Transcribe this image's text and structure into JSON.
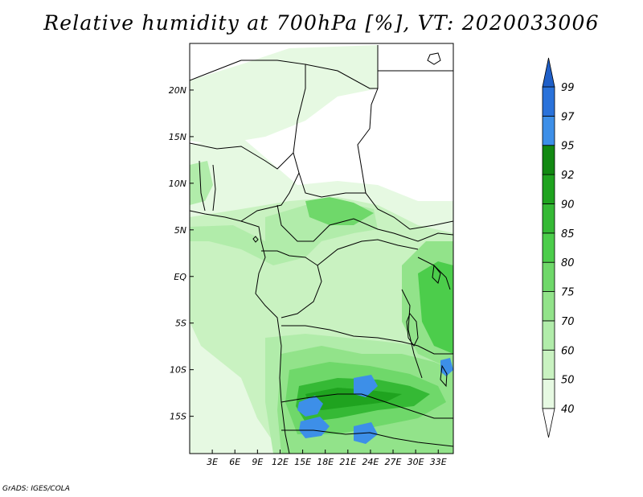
{
  "title": "Relative humidity at 700hPa [%], VT: 2020033006",
  "credit": "GrADS: IGES/COLA",
  "map": {
    "lat_range": [
      -19,
      25
    ],
    "lon_range": [
      0,
      35
    ],
    "lat_ticks": [
      {
        "value": 20,
        "label": "20N"
      },
      {
        "value": 15,
        "label": "15N"
      },
      {
        "value": 10,
        "label": "10N"
      },
      {
        "value": 5,
        "label": "5N"
      },
      {
        "value": 0,
        "label": "EQ"
      },
      {
        "value": -5,
        "label": "5S"
      },
      {
        "value": -10,
        "label": "10S"
      },
      {
        "value": -15,
        "label": "15S"
      }
    ],
    "lon_ticks": [
      {
        "value": 3,
        "label": "3E"
      },
      {
        "value": 6,
        "label": "6E"
      },
      {
        "value": 9,
        "label": "9E"
      },
      {
        "value": 12,
        "label": "12E"
      },
      {
        "value": 15,
        "label": "15E"
      },
      {
        "value": 18,
        "label": "18E"
      },
      {
        "value": 21,
        "label": "21E"
      },
      {
        "value": 24,
        "label": "24E"
      },
      {
        "value": 27,
        "label": "27E"
      },
      {
        "value": 30,
        "label": "30E"
      },
      {
        "value": 33,
        "label": "33E"
      }
    ]
  },
  "colorbar": {
    "levels": [
      {
        "value": "40",
        "color": "#e6f9e2"
      },
      {
        "value": "50",
        "color": "#c9f2c1"
      },
      {
        "value": "60",
        "color": "#b1ecaa"
      },
      {
        "value": "70",
        "color": "#92e38a"
      },
      {
        "value": "75",
        "color": "#6fd86a"
      },
      {
        "value": "80",
        "color": "#4ccd4b"
      },
      {
        "value": "85",
        "color": "#35b935"
      },
      {
        "value": "90",
        "color": "#1fa31f"
      },
      {
        "value": "92",
        "color": "#128912"
      },
      {
        "value": "95",
        "color": "#3d8fe8"
      },
      {
        "value": "97",
        "color": "#2a72da"
      },
      {
        "value": "99",
        "color": "#1f5fc8"
      }
    ],
    "low_end_color": "#ffffff",
    "high_end_color": "#1f5fc8"
  }
}
